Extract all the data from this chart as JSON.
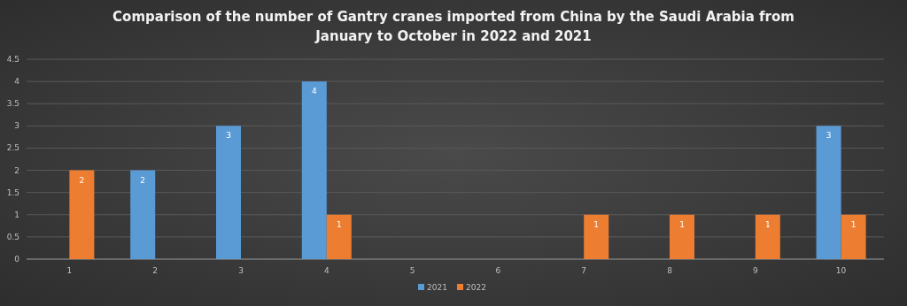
{
  "chart_data": {
    "type": "bar",
    "title": "Comparison of the number of Gantry cranes imported from China by the Saudi Arabia from January to October in 2022 and 2021",
    "categories": [
      "1",
      "2",
      "3",
      "4",
      "5",
      "6",
      "7",
      "8",
      "9",
      "10"
    ],
    "series": [
      {
        "name": "2021",
        "color": "#5b9bd5",
        "values": [
          null,
          2,
          3,
          4,
          null,
          null,
          null,
          null,
          null,
          3
        ]
      },
      {
        "name": "2022",
        "color": "#ed7d31",
        "values": [
          2,
          null,
          null,
          1,
          null,
          null,
          1,
          1,
          1,
          1
        ]
      }
    ],
    "ylim": [
      0,
      4.5
    ],
    "yticks": [
      0,
      0.5,
      1,
      1.5,
      2,
      2.5,
      3,
      3.5,
      4,
      4.5
    ],
    "grid": "y",
    "legend": "bottom",
    "data_labels": true
  }
}
